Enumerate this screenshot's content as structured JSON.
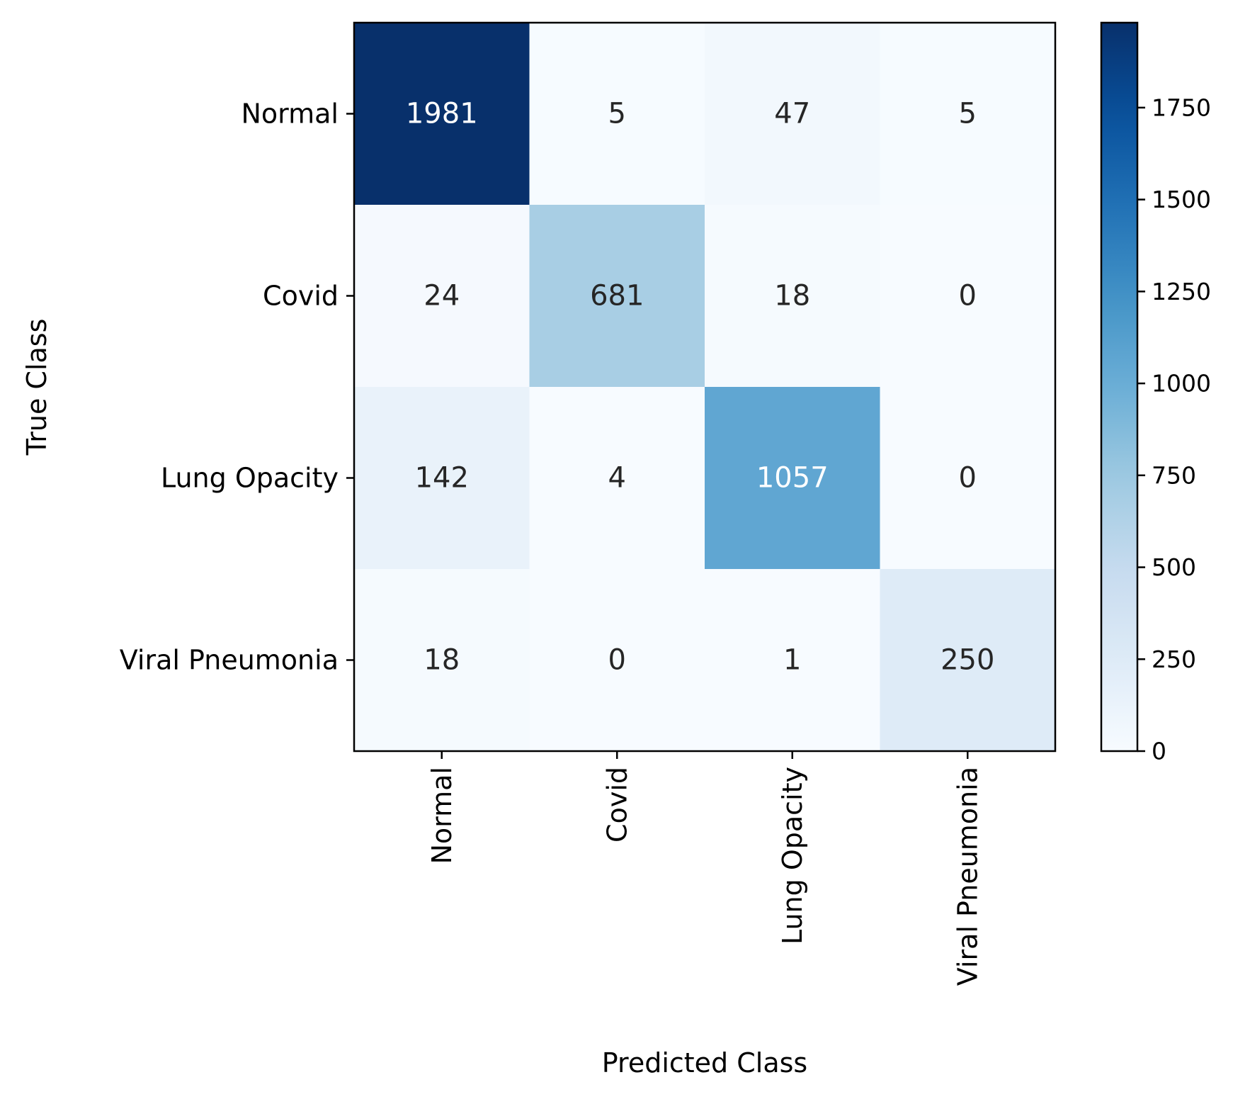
{
  "chart_data": {
    "type": "heatmap",
    "title": "",
    "xlabel": "Predicted Class",
    "ylabel": "True Class",
    "x_categories": [
      "Normal",
      "Covid",
      "Lung Opacity",
      "Viral Pneumonia"
    ],
    "y_categories": [
      "Normal",
      "Covid",
      "Lung Opacity",
      "Viral Pneumonia"
    ],
    "values": [
      [
        1981,
        5,
        47,
        5
      ],
      [
        24,
        681,
        18,
        0
      ],
      [
        142,
        4,
        1057,
        0
      ],
      [
        18,
        0,
        1,
        250
      ]
    ],
    "colorscale": "Blues",
    "color_range": [
      0,
      1981
    ],
    "colorbar": {
      "ticks": [
        0,
        250,
        500,
        750,
        1000,
        1250,
        1500,
        1750
      ]
    },
    "grid": false
  }
}
